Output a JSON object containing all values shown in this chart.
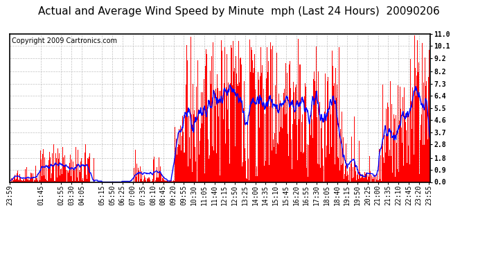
{
  "title": "Actual and Average Wind Speed by Minute  mph (Last 24 Hours)  20090206",
  "copyright": "Copyright 2009 Cartronics.com",
  "yticks": [
    0.0,
    0.9,
    1.8,
    2.8,
    3.7,
    4.6,
    5.5,
    6.4,
    7.3,
    8.2,
    9.2,
    10.1,
    11.0
  ],
  "ylim": [
    0.0,
    11.0
  ],
  "bar_color": "#ff0000",
  "line_color": "#0000ff",
  "bg_color": "#ffffff",
  "grid_color": "#b0b0b0",
  "title_fontsize": 11,
  "copyright_fontsize": 7,
  "tick_fontsize": 7,
  "xtick_labels": [
    "23:59",
    "01:45",
    "02:55",
    "03:30",
    "04:05",
    "05:15",
    "05:50",
    "06:25",
    "07:00",
    "07:35",
    "08:10",
    "08:45",
    "09:20",
    "09:55",
    "10:30",
    "11:05",
    "11:40",
    "12:15",
    "12:50",
    "13:25",
    "14:00",
    "14:35",
    "15:10",
    "15:45",
    "16:20",
    "16:55",
    "17:30",
    "18:05",
    "18:40",
    "19:15",
    "19:50",
    "20:25",
    "21:00",
    "21:35",
    "22:10",
    "22:45",
    "23:20",
    "23:55"
  ]
}
